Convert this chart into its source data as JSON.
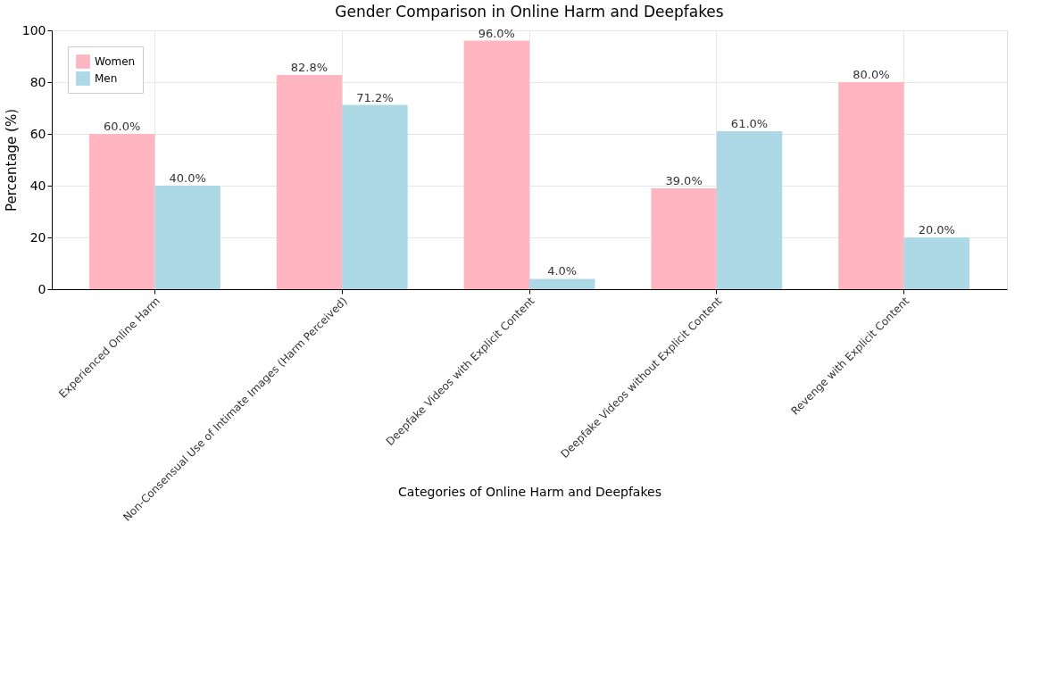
{
  "chart_data": {
    "type": "bar",
    "title": "Gender Comparison in Online Harm and Deepfakes",
    "xlabel": "Categories of Online Harm and Deepfakes",
    "ylabel": "Percentage (%)",
    "categories": [
      "Experienced Online Harm",
      "Non-Consensual Use of Intimate Images (Harm Perceived)",
      "Deepfake Videos with Explicit Content",
      "Deepfake Videos without Explicit Content",
      "Revenge with Explicit Content"
    ],
    "series": [
      {
        "name": "Women",
        "color": "#ffb6c1",
        "values": [
          60.0,
          82.8,
          96.0,
          39.0,
          80.0
        ],
        "value_labels": [
          "60.0%",
          "82.8%",
          "96.0%",
          "39.0%",
          "80.0%"
        ]
      },
      {
        "name": "Men",
        "color": "#add8e6",
        "values": [
          40.0,
          71.2,
          4.0,
          61.0,
          20.0
        ],
        "value_labels": [
          "40.0%",
          "71.2%",
          "4.0%",
          "61.0%",
          "20.0%"
        ]
      }
    ],
    "ylim": [
      0,
      100
    ],
    "yticks": [
      0,
      20,
      40,
      60,
      80,
      100
    ],
    "grid": true,
    "legend": "top left"
  }
}
